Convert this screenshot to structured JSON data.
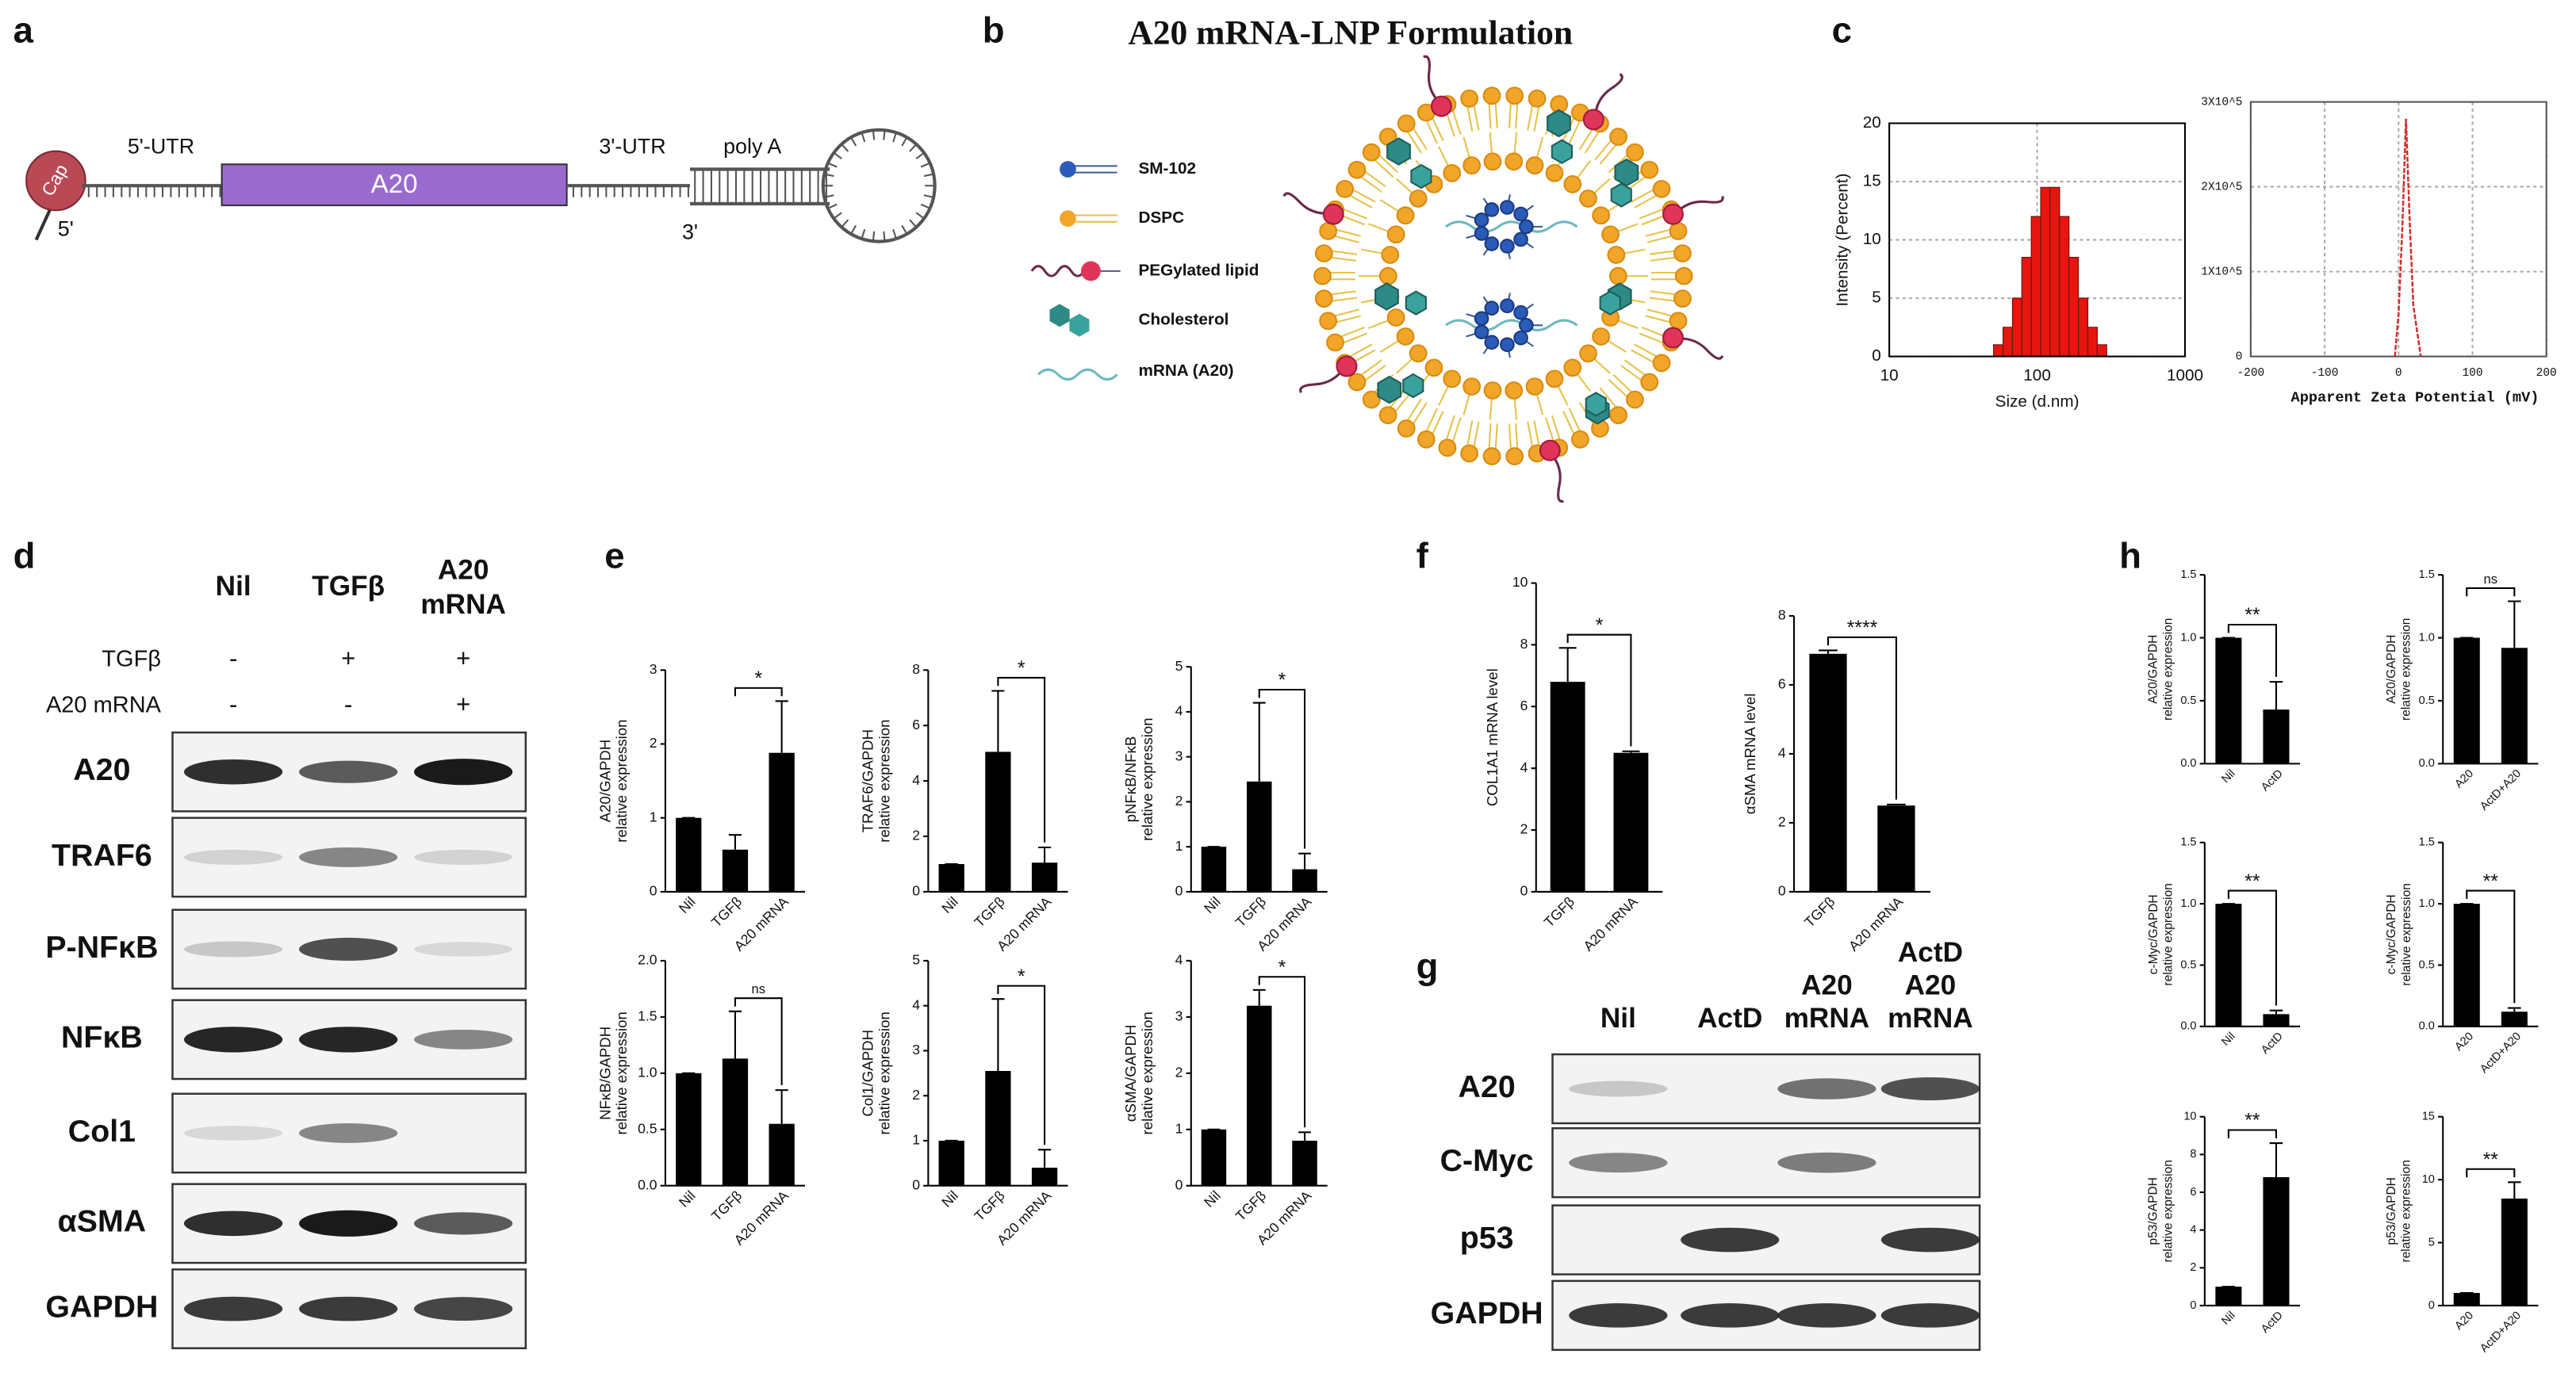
{
  "panel_labels": [
    "a",
    "b",
    "c",
    "d",
    "e",
    "f",
    "g",
    "h"
  ],
  "mrna_diagram": {
    "cap": "Cap",
    "five_prime_utr": "5'-UTR",
    "coding": "A20",
    "three_prime_utr": "3'-UTR",
    "poly_a": "poly A",
    "five_prime": "5'",
    "three_prime": "3'"
  },
  "lnp": {
    "title": "A20 mRNA-LNP Formulation",
    "legend": [
      "SM-102",
      "DSPC",
      "PEGylated lipid",
      "Cholesterol",
      "mRNA (A20)"
    ]
  },
  "western_d": {
    "columns": [
      [
        "Nil"
      ],
      [
        "TGFβ"
      ],
      [
        "A20",
        "mRNA"
      ]
    ],
    "treatments": [
      {
        "name": "TGFβ",
        "marks": [
          "-",
          "+",
          "+"
        ]
      },
      {
        "name": "A20 mRNA",
        "marks": [
          "-",
          "-",
          "+"
        ]
      }
    ],
    "rows": [
      "A20",
      "TRAF6",
      "P-NFκB",
      "NFκB",
      "Col1",
      "αSMA",
      "GAPDH"
    ]
  },
  "western_g": {
    "columns": [
      [
        "Nil"
      ],
      [
        "ActD"
      ],
      [
        "A20",
        "mRNA"
      ],
      [
        "ActD",
        "A20",
        "mRNA"
      ]
    ],
    "rows": [
      "A20",
      "C-Myc",
      "p53",
      "GAPDH"
    ]
  },
  "chart_data": [
    {
      "type": "histogram",
      "x_label": "Size (d.nm)",
      "y_label": "Intensity (Percent)",
      "bins": [
        50.7,
        58.8,
        68.1,
        78.8,
        91.3,
        105.7,
        122.4,
        141.8,
        164.2,
        190.1,
        220.2,
        255,
        295.3
      ],
      "counts": [
        1,
        2.5,
        5,
        8.5,
        12,
        14.5,
        14.5,
        12,
        8.5,
        5,
        2.5,
        1
      ],
      "xscale": "log",
      "xlim": [
        10,
        1000
      ],
      "xticks": [
        10,
        100,
        1000
      ],
      "ylim": [
        0,
        20
      ],
      "yticks": [
        0,
        5,
        10,
        15,
        20
      ],
      "color": "#e8150e",
      "grid": true
    },
    {
      "type": "line",
      "x_label": "Apparent Zeta Potential (mV)",
      "x": [
        -5,
        0,
        5,
        10,
        15,
        20,
        30
      ],
      "series": [
        {
          "values": [
            0,
            50000,
            150000,
            280000,
            160000,
            60000,
            0
          ],
          "color": "#d42a2a"
        }
      ],
      "xlim": [
        -200,
        200
      ],
      "xticks": [
        -200,
        -100,
        0,
        100,
        200
      ],
      "ylim": [
        0,
        300000
      ],
      "yticks": [
        0,
        {
          "value": 100000,
          "label": "1X10^5"
        },
        {
          "value": 200000,
          "label": "2X10^5"
        },
        {
          "value": 300000,
          "label": "3X10^5"
        }
      ],
      "grid": true
    },
    {
      "type": "bar",
      "y_label": [
        "A20/GAPDH",
        "relative expression"
      ],
      "categories": [
        "Nil",
        "TGFβ",
        "A20 mRNA"
      ],
      "values": [
        1,
        0.57,
        1.88
      ],
      "errors": [
        0,
        0.2,
        0.7
      ],
      "ylim": [
        0,
        3
      ],
      "yticks": [
        0,
        1,
        2,
        3
      ],
      "annotation": "*",
      "color": "#000000"
    },
    {
      "type": "bar",
      "y_label": [
        "TRAF6/GAPDH",
        "relative expression"
      ],
      "categories": [
        "Nil",
        "TGFβ",
        "A20 mRNA"
      ],
      "values": [
        1,
        5.05,
        1.05
      ],
      "errors": [
        0,
        2.2,
        0.55
      ],
      "ylim": [
        0,
        8
      ],
      "yticks": [
        0,
        2,
        4,
        6,
        8
      ],
      "annotation": "*",
      "color": "#000000"
    },
    {
      "type": "bar",
      "y_label": [
        "pNFκB/NFκB",
        "relative expression"
      ],
      "categories": [
        "Nil",
        "TGFβ",
        "A20 mRNA"
      ],
      "values": [
        1,
        2.45,
        0.5
      ],
      "errors": [
        0,
        1.75,
        0.35
      ],
      "ylim": [
        0,
        5
      ],
      "yticks": [
        0,
        1,
        2,
        3,
        4,
        5
      ],
      "annotation": "*",
      "color": "#000000"
    },
    {
      "type": "bar",
      "y_label": [
        "NFκB/GAPDH",
        "relative expression"
      ],
      "categories": [
        "Nil",
        "TGFβ",
        "A20 mRNA"
      ],
      "values": [
        1,
        1.13,
        0.55
      ],
      "errors": [
        0,
        0.42,
        0.3
      ],
      "ylim": [
        0,
        2
      ],
      "yticks": [
        {
          "value": 0,
          "label": "0.0"
        },
        {
          "value": 0.5,
          "label": "0.5"
        },
        {
          "value": 1,
          "label": "1.0"
        },
        {
          "value": 1.5,
          "label": "1.5"
        },
        {
          "value": 2,
          "label": "2.0"
        }
      ],
      "annotation": "ns",
      "color": "#000000"
    },
    {
      "type": "bar",
      "y_label": [
        "Col1/GAPDH",
        "relative expression"
      ],
      "categories": [
        "Nil",
        "TGFβ",
        "A20 mRNA"
      ],
      "values": [
        1,
        2.55,
        0.4
      ],
      "errors": [
        0,
        1.6,
        0.4
      ],
      "ylim": [
        0,
        5
      ],
      "yticks": [
        0,
        1,
        2,
        3,
        4,
        5
      ],
      "annotation": "*",
      "color": "#000000"
    },
    {
      "type": "bar",
      "y_label": [
        "αSMA/GAPDH",
        "relative expression"
      ],
      "categories": [
        "Nil",
        "TGFβ",
        "A20 mRNA"
      ],
      "values": [
        1,
        3.2,
        0.8
      ],
      "errors": [
        0,
        0.28,
        0.15
      ],
      "ylim": [
        0,
        4
      ],
      "yticks": [
        0,
        1,
        2,
        3,
        4
      ],
      "annotation": "*",
      "color": "#000000"
    },
    {
      "type": "bar",
      "y_label": [
        "COL1A1 mRNA level"
      ],
      "categories": [
        "TGFβ",
        "A20 mRNA"
      ],
      "values": [
        6.8,
        4.5
      ],
      "errors": [
        1.1,
        0.05
      ],
      "ylim": [
        0,
        10
      ],
      "yticks": [
        0,
        2,
        4,
        6,
        8,
        10
      ],
      "annotation": "*",
      "color": "#000000"
    },
    {
      "type": "bar",
      "y_label": [
        "αSMA mRNA level"
      ],
      "categories": [
        "TGFβ",
        "A20 mRNA"
      ],
      "values": [
        6.9,
        2.5
      ],
      "errors": [
        0.1,
        0.03
      ],
      "ylim": [
        0,
        8
      ],
      "yticks": [
        0,
        2,
        4,
        6,
        8
      ],
      "annotation": "****",
      "color": "#000000"
    },
    {
      "type": "bar",
      "y_label": [
        "A20/GAPDH",
        "relative expression"
      ],
      "categories": [
        "Nil",
        "ActD"
      ],
      "values": [
        1,
        0.43
      ],
      "errors": [
        0,
        0.22
      ],
      "ylim": [
        0,
        1.5
      ],
      "yticks": [
        {
          "value": 0,
          "label": "0.0"
        },
        {
          "value": 0.5,
          "label": "0.5"
        },
        {
          "value": 1,
          "label": "1.0"
        },
        {
          "value": 1.5,
          "label": "1.5"
        }
      ],
      "annotation": "**",
      "color": "#000000"
    },
    {
      "type": "bar",
      "y_label": [
        "A20/GAPDH",
        "relative expression"
      ],
      "categories": [
        "A20",
        "ActD+A20"
      ],
      "values": [
        1,
        0.92
      ],
      "errors": [
        0,
        0.37
      ],
      "ylim": [
        0,
        1.5
      ],
      "yticks": [
        {
          "value": 0,
          "label": "0.0"
        },
        {
          "value": 0.5,
          "label": "0.5"
        },
        {
          "value": 1,
          "label": "1.0"
        },
        {
          "value": 1.5,
          "label": "1.5"
        }
      ],
      "annotation": "ns",
      "color": "#000000"
    },
    {
      "type": "bar",
      "y_label": [
        "c-Myc/GAPDH",
        "relative expression"
      ],
      "categories": [
        "Nil",
        "ActD"
      ],
      "values": [
        1,
        0.1
      ],
      "errors": [
        0,
        0.03
      ],
      "ylim": [
        0,
        1.5
      ],
      "yticks": [
        {
          "value": 0,
          "label": "0.0"
        },
        {
          "value": 0.5,
          "label": "0.5"
        },
        {
          "value": 1,
          "label": "1.0"
        },
        {
          "value": 1.5,
          "label": "1.5"
        }
      ],
      "annotation": "**",
      "color": "#000000"
    },
    {
      "type": "bar",
      "y_label": [
        "c-Myc/GAPDH",
        "relative expression"
      ],
      "categories": [
        "A20",
        "ActD+A20"
      ],
      "values": [
        1,
        0.12
      ],
      "errors": [
        0,
        0.03
      ],
      "ylim": [
        0,
        1.5
      ],
      "yticks": [
        {
          "value": 0,
          "label": "0.0"
        },
        {
          "value": 0.5,
          "label": "0.5"
        },
        {
          "value": 1,
          "label": "1.0"
        },
        {
          "value": 1.5,
          "label": "1.5"
        }
      ],
      "annotation": "**",
      "color": "#000000"
    },
    {
      "type": "bar",
      "y_label": [
        "p53/GAPDH",
        "relative expression"
      ],
      "categories": [
        "Nil",
        "ActD"
      ],
      "values": [
        1,
        6.8
      ],
      "errors": [
        0,
        1.8
      ],
      "ylim": [
        0,
        10
      ],
      "yticks": [
        0,
        2,
        4,
        6,
        8,
        10
      ],
      "annotation": "**",
      "color": "#000000"
    },
    {
      "type": "bar",
      "y_label": [
        "p53/GAPDH",
        "relative expression"
      ],
      "categories": [
        "A20",
        "ActD+A20"
      ],
      "values": [
        1,
        8.5
      ],
      "errors": [
        0,
        1.3
      ],
      "ylim": [
        0,
        15
      ],
      "yticks": [
        0,
        5,
        10,
        15
      ],
      "annotation": "**",
      "color": "#000000"
    }
  ]
}
